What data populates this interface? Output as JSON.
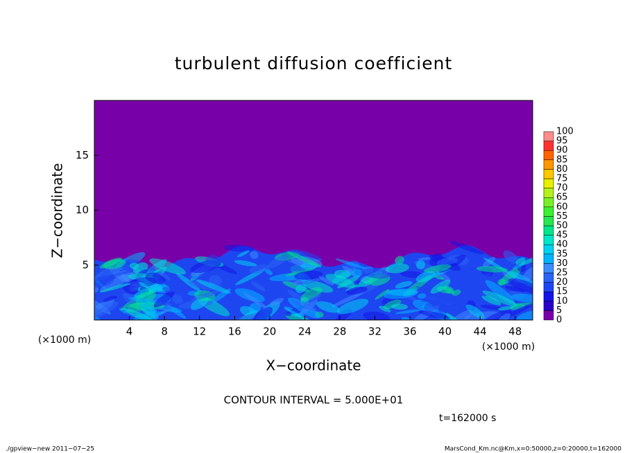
{
  "chart_data": {
    "type": "contour",
    "title": "turbulent diffusion coefficient",
    "xlabel": "X−coordinate",
    "ylabel": "Z−coordinate",
    "xunit": "(×1000 m)",
    "yunit": "(×1000 m)",
    "xlim": [
      0,
      50
    ],
    "ylim": [
      0,
      20
    ],
    "xticks": [
      4,
      8,
      12,
      16,
      20,
      24,
      28,
      32,
      36,
      40,
      44,
      48
    ],
    "yticks": [
      5,
      10,
      15
    ],
    "levels": [
      0,
      5,
      10,
      15,
      20,
      25,
      30,
      35,
      40,
      45,
      50,
      55,
      60,
      65,
      70,
      75,
      80,
      85,
      90,
      95,
      100
    ],
    "colors": [
      "#7800a8",
      "#2800c8",
      "#1414e6",
      "#1e46f0",
      "#2864f5",
      "#3c8cff",
      "#00b4ff",
      "#00d2f0",
      "#00e6c8",
      "#00e68c",
      "#28e650",
      "#3cf032",
      "#78f028",
      "#b4f01e",
      "#e6f000",
      "#ffc800",
      "#ff9600",
      "#ff6400",
      "#ff3232",
      "#ff8c8c"
    ],
    "note": "CONTOUR INTERVAL = 5.000E+01",
    "time": "t=162000 s",
    "footer_left": "./gpview−new   2011−07−25",
    "footer_right": "MarsCond_Km.nc@Km,x=0:50000,z=0:20000,t=162000"
  }
}
